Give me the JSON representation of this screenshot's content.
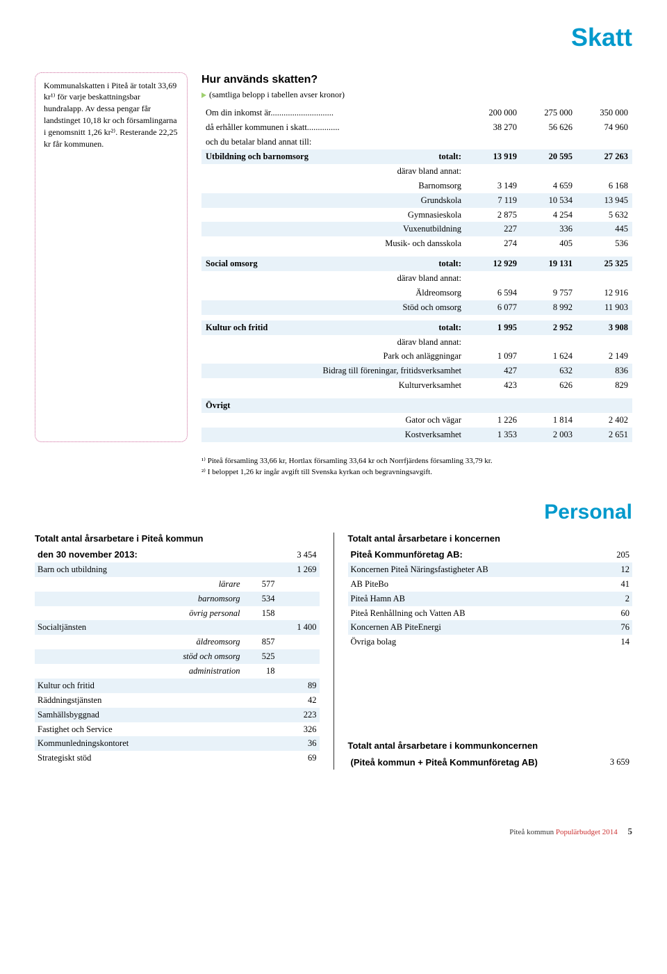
{
  "title": "Skatt",
  "callout": "Kommunalskatten i Piteå är totalt 33,69 kr¹⁾ för varje beskattningsbar hundralapp. Av dessa pengar får landstinget 10,18 kr och församlingarna i genomsnitt 1,26 kr²⁾. Resterande 22,25 kr får kommunen.",
  "subheading": "Hur används skatten?",
  "note": "(samtliga belopp i tabellen avser kronor)",
  "tax_rows": [
    {
      "type": "plain",
      "label": "Om din inkomst är.............................",
      "v": [
        "200 000",
        "275 000",
        "350 000"
      ]
    },
    {
      "type": "plain",
      "label": "då erhåller kommunen i skatt...............",
      "v": [
        "38 270",
        "56 626",
        "74 960"
      ]
    },
    {
      "type": "plain",
      "label": "och du betalar bland annat till:",
      "v": [
        "",
        "",
        ""
      ]
    },
    {
      "type": "head",
      "label": "Utbildning och barnomsorg",
      "sub": "totalt:",
      "v": [
        "13 919",
        "20 595",
        "27 263"
      ]
    },
    {
      "type": "sub",
      "label": "därav bland annat:",
      "v": [
        "",
        "",
        ""
      ]
    },
    {
      "type": "sub",
      "label": "Barnomsorg",
      "v": [
        "3 149",
        "4 659",
        "6 168"
      ]
    },
    {
      "type": "sub",
      "stripe": true,
      "label": "Grundskola",
      "v": [
        "7 119",
        "10 534",
        "13 945"
      ]
    },
    {
      "type": "sub",
      "label": "Gymnasieskola",
      "v": [
        "2 875",
        "4 254",
        "5 632"
      ]
    },
    {
      "type": "sub",
      "stripe": true,
      "label": "Vuxenutbildning",
      "v": [
        "227",
        "336",
        "445"
      ]
    },
    {
      "type": "sub",
      "label": "Musik- och dansskola",
      "v": [
        "274",
        "405",
        "536"
      ]
    },
    {
      "type": "spacer"
    },
    {
      "type": "head",
      "label": "Social omsorg",
      "sub": "totalt:",
      "v": [
        "12 929",
        "19 131",
        "25 325"
      ]
    },
    {
      "type": "sub",
      "label": "därav bland annat:",
      "v": [
        "",
        "",
        ""
      ]
    },
    {
      "type": "sub",
      "label": "Äldreomsorg",
      "v": [
        "6 594",
        "9 757",
        "12 916"
      ]
    },
    {
      "type": "sub",
      "stripe": true,
      "label": "Stöd och omsorg",
      "v": [
        "6 077",
        "8 992",
        "11 903"
      ]
    },
    {
      "type": "spacer"
    },
    {
      "type": "head",
      "label": "Kultur och fritid",
      "sub": "totalt:",
      "v": [
        "1 995",
        "2 952",
        "3 908"
      ]
    },
    {
      "type": "sub",
      "label": "därav bland annat:",
      "v": [
        "",
        "",
        ""
      ]
    },
    {
      "type": "sub",
      "label": "Park och anläggningar",
      "v": [
        "1 097",
        "1 624",
        "2 149"
      ]
    },
    {
      "type": "sub",
      "stripe": true,
      "label": "Bidrag till föreningar, fritidsverksamhet",
      "v": [
        "427",
        "632",
        "836"
      ]
    },
    {
      "type": "sub",
      "label": "Kulturverksamhet",
      "v": [
        "423",
        "626",
        "829"
      ]
    },
    {
      "type": "spacer"
    },
    {
      "type": "head",
      "label": "Övrigt",
      "sub": "",
      "v": [
        "",
        "",
        ""
      ]
    },
    {
      "type": "sub",
      "label": "Gator och vägar",
      "v": [
        "1 226",
        "1 814",
        "2 402"
      ]
    },
    {
      "type": "sub",
      "stripe": true,
      "label": "Kostverksamhet",
      "v": [
        "1 353",
        "2 003",
        "2 651"
      ]
    }
  ],
  "footnote1": "¹⁾ Piteå församling 33,66 kr, Hortlax församling 33,64 kr och Norrfjärdens församling 33,79 kr.",
  "footnote2": "²⁾ I beloppet 1,26 kr ingår avgift till Svenska kyrkan och begravningsavgift.",
  "personal_title": "Personal",
  "left_head1": "Totalt antal årsarbetare i Piteå kommun",
  "left_head2": "den 30 november 2013:",
  "left_total": "3 454",
  "left_rows": [
    {
      "t": "main",
      "stripe": true,
      "label": "Barn och utbildning",
      "v2": "1 269"
    },
    {
      "t": "sub",
      "label": "lärare",
      "v1": "577"
    },
    {
      "t": "sub",
      "stripe": true,
      "label": "barnomsorg",
      "v1": "534"
    },
    {
      "t": "sub",
      "label": "övrig personal",
      "v1": "158"
    },
    {
      "t": "main",
      "stripe": true,
      "label": "Socialtjänsten",
      "v2": "1 400"
    },
    {
      "t": "sub",
      "label": "äldreomsorg",
      "v1": "857"
    },
    {
      "t": "sub",
      "stripe": true,
      "label": "stöd och omsorg",
      "v1": "525"
    },
    {
      "t": "sub",
      "label": "administration",
      "v1": "18"
    },
    {
      "t": "main",
      "stripe": true,
      "label": "Kultur och fritid",
      "v2": "89"
    },
    {
      "t": "main",
      "label": "Räddningstjänsten",
      "v2": "42"
    },
    {
      "t": "main",
      "stripe": true,
      "label": "Samhällsbyggnad",
      "v2": "223"
    },
    {
      "t": "main",
      "label": "Fastighet och Service",
      "v2": "326"
    },
    {
      "t": "main",
      "stripe": true,
      "label": "Kommunledningskontoret",
      "v2": "36"
    },
    {
      "t": "main",
      "label": "Strategiskt stöd",
      "v2": "69"
    }
  ],
  "right_head1": "Totalt antal årsarbetare i koncernen",
  "right_head2": "Piteå Kommunföretag AB:",
  "right_total": "205",
  "right_rows": [
    {
      "stripe": true,
      "label": "Koncernen Piteå Näringsfastigheter AB",
      "v": "12"
    },
    {
      "label": "AB PiteBo",
      "v": "41"
    },
    {
      "stripe": true,
      "label": "Piteå Hamn AB",
      "v": "2"
    },
    {
      "label": "Piteå Renhållning och Vatten AB",
      "v": "60"
    },
    {
      "stripe": true,
      "label": "Koncernen AB PiteEnergi",
      "v": "76"
    },
    {
      "label": "Övriga bolag",
      "v": "14"
    }
  ],
  "right_foot1": "Totalt antal årsarbetare i kommunkoncernen",
  "right_foot2": "(Piteå kommun + Piteå Kommunföretag AB)",
  "right_foot_total": "3 659",
  "footer_text": "Piteå kommun",
  "footer_red": "Populärbudget 2014",
  "page_num": "5"
}
